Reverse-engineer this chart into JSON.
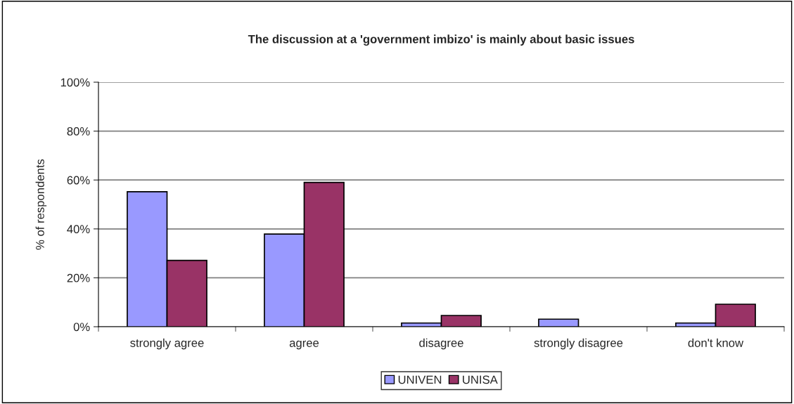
{
  "chart_data": {
    "type": "bar",
    "title": "The discussion at a 'government imbizo' is mainly about basic issues",
    "ylabel": "% of respondents",
    "categories": [
      "strongly agree",
      "agree",
      "disagree",
      "strongly disagree",
      "don't know"
    ],
    "series": [
      {
        "name": "UNIVEN",
        "color": "#9999ff",
        "values": [
          55.2,
          37.9,
          1.5,
          3.1,
          1.5
        ]
      },
      {
        "name": "UNISA",
        "color": "#993366",
        "values": [
          27.1,
          59.0,
          4.6,
          0,
          9.2
        ]
      }
    ],
    "ylim": [
      0,
      100
    ],
    "yticks": [
      {
        "value": 0,
        "label": "0%"
      },
      {
        "value": 20,
        "label": "20%"
      },
      {
        "value": 40,
        "label": "40%"
      },
      {
        "value": 60,
        "label": "60%"
      },
      {
        "value": 80,
        "label": "80%"
      },
      {
        "value": 100,
        "label": "100%"
      }
    ],
    "grid": "y",
    "legend": "bottom"
  }
}
